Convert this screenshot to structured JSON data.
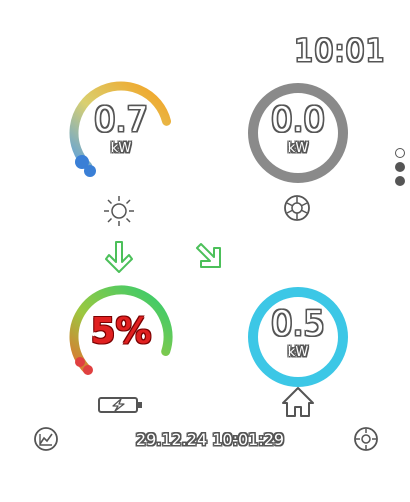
{
  "header": {
    "clock": "10:01"
  },
  "solar": {
    "value": "0.7",
    "unit": "kW",
    "fraction": 0.78,
    "icon": "sun-icon"
  },
  "grid": {
    "value": "0.0",
    "unit": "kW",
    "fraction": 0.0,
    "icon": "power-grid-icon"
  },
  "battery": {
    "value": "5%",
    "fraction": 0.05,
    "icon": "battery-charging-icon"
  },
  "home": {
    "value": "0.5",
    "unit": "kW",
    "fraction": 1.0,
    "icon": "home-icon"
  },
  "flows": {
    "solar_to_battery": "down-arrow",
    "solar_to_home": "diagonal-arrow"
  },
  "footer": {
    "datetime": "29.12.24 10:01:29"
  },
  "pager": {
    "pages": 3,
    "active_page": 2
  },
  "colors": {
    "grid_ring": "#8a8a8a",
    "home_ring": "#3cc7e6",
    "arrow_green": "#4cc05a",
    "battery_text": "#e02020"
  }
}
